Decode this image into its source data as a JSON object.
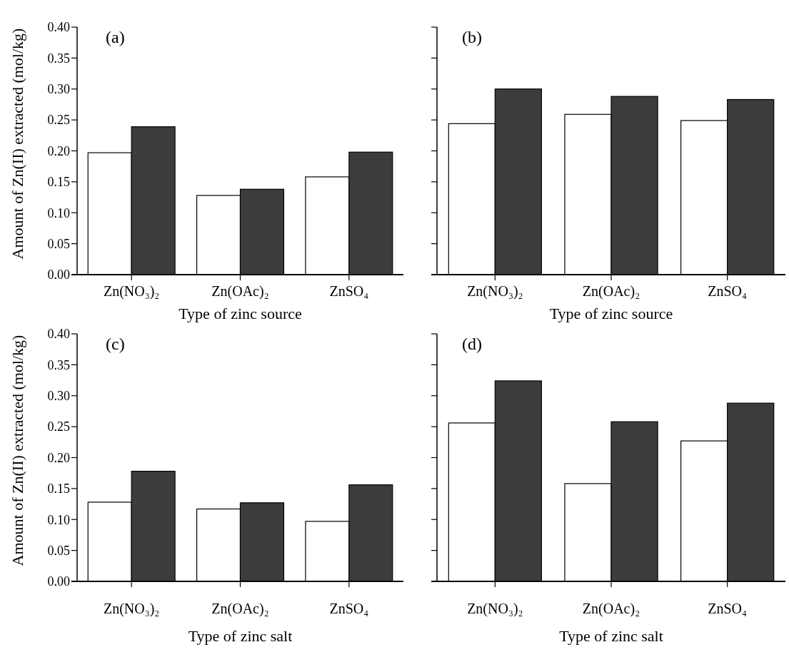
{
  "chart_data": [
    {
      "type": "bar",
      "title": "(a)",
      "xlabel": "Type of zinc source",
      "ylabel": "Amount of Zn(II) extracted (mol/kg)",
      "categories": [
        "Zn(NO₃)₂",
        "Zn(OAc)₂",
        "ZnSO₄"
      ],
      "ylim": [
        0,
        0.4
      ],
      "yticks": [
        {
          "value": 0,
          "label": "0.00"
        },
        {
          "value": 0.05,
          "label": "0.05"
        },
        {
          "value": 0.1,
          "label": "0.10"
        },
        {
          "value": 0.15,
          "label": "0.15"
        },
        {
          "value": 0.2,
          "label": "0.20"
        },
        {
          "value": 0.25,
          "label": "0.25"
        },
        {
          "value": 0.3,
          "label": "0.30"
        },
        {
          "value": 0.35,
          "label": "0.35"
        },
        {
          "value": 0.4,
          "label": "0.40"
        }
      ],
      "series": [
        {
          "color": "#ffffff",
          "values": [
            0.197,
            0.128,
            0.158
          ]
        },
        {
          "color": "#3c3c3c",
          "values": [
            0.239,
            0.138,
            0.198
          ]
        }
      ]
    },
    {
      "type": "bar",
      "title": "(b)",
      "xlabel": "Type of zinc source",
      "categories": [
        "Zn(NO₃)₂",
        "Zn(OAc)₂",
        "ZnSO₄"
      ],
      "ylim": [
        0,
        0.4
      ],
      "yticks": [
        {
          "value": 0,
          "label": null
        },
        {
          "value": 0.05,
          "label": null
        },
        {
          "value": 0.1,
          "label": null
        },
        {
          "value": 0.15,
          "label": null
        },
        {
          "value": 0.2,
          "label": null
        },
        {
          "value": 0.25,
          "label": null
        },
        {
          "value": 0.3,
          "label": null
        },
        {
          "value": 0.35,
          "label": null
        },
        {
          "value": 0.4,
          "label": null
        }
      ],
      "tick_labels": "x",
      "series": [
        {
          "color": "#ffffff",
          "values": [
            0.244,
            0.259,
            0.249
          ]
        },
        {
          "color": "#3c3c3c",
          "values": [
            0.3,
            0.288,
            0.283
          ]
        }
      ]
    },
    {
      "type": "bar",
      "title": "(c)",
      "xlabel": "Type of zinc salt",
      "ylabel": "Amount of Zn(II) extracted (mol/kg)",
      "categories": [
        "Zn(NO₃)₂",
        "Zn(OAc)₂",
        "ZnSO₄"
      ],
      "ylim": [
        0,
        0.4
      ],
      "yticks": [
        {
          "value": 0,
          "label": "0.00"
        },
        {
          "value": 0.05,
          "label": "0.05"
        },
        {
          "value": 0.1,
          "label": "0.10"
        },
        {
          "value": 0.15,
          "label": "0.15"
        },
        {
          "value": 0.2,
          "label": "0.20"
        },
        {
          "value": 0.25,
          "label": "0.25"
        },
        {
          "value": 0.3,
          "label": "0.30"
        },
        {
          "value": 0.35,
          "label": "0.35"
        },
        {
          "value": 0.4,
          "label": "0.40"
        }
      ],
      "series": [
        {
          "color": "#ffffff",
          "values": [
            0.128,
            0.117,
            0.097
          ]
        },
        {
          "color": "#3c3c3c",
          "values": [
            0.178,
            0.127,
            0.156
          ]
        }
      ]
    },
    {
      "type": "bar",
      "title": "(d)",
      "xlabel": "Type of zinc salt",
      "categories": [
        "Zn(NO₃)₂",
        "Zn(OAc)₂",
        "ZnSO₄"
      ],
      "ylim": [
        0,
        0.4
      ],
      "yticks": [
        {
          "value": 0,
          "label": null
        },
        {
          "value": 0.05,
          "label": null
        },
        {
          "value": 0.1,
          "label": null
        },
        {
          "value": 0.15,
          "label": null
        },
        {
          "value": 0.2,
          "label": null
        },
        {
          "value": 0.25,
          "label": null
        },
        {
          "value": 0.3,
          "label": null
        },
        {
          "value": 0.35,
          "label": null
        },
        {
          "value": 0.4,
          "label": null
        }
      ],
      "tick_labels": "x",
      "series": [
        {
          "color": "#ffffff",
          "values": [
            0.256,
            0.158,
            0.227
          ]
        },
        {
          "color": "#3c3c3c",
          "values": [
            0.324,
            0.258,
            0.288
          ]
        }
      ]
    }
  ]
}
